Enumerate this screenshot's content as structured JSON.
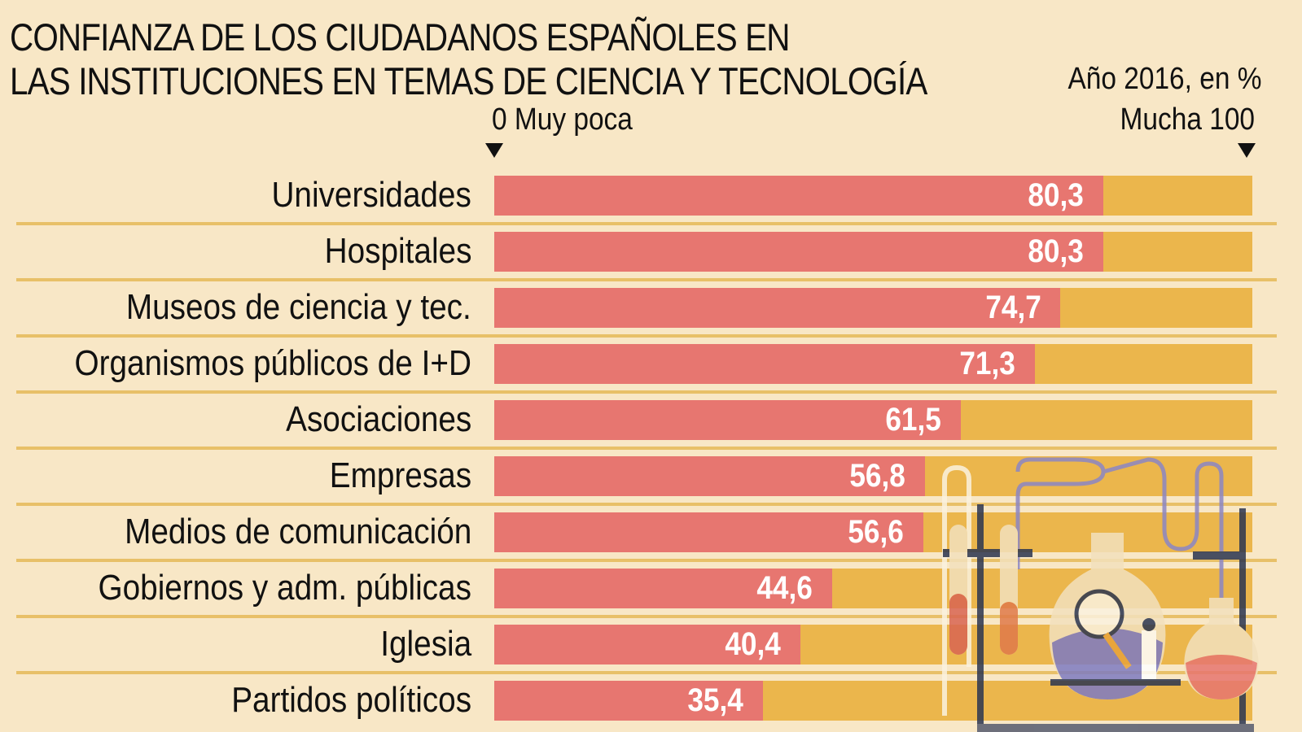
{
  "chart_data": {
    "type": "bar",
    "orientation": "horizontal",
    "title": "CONFIANZA DE LOS CIUDADANOS ESPAÑOLES EN LAS INSTITUCIONES EN TEMAS DE CIENCIA Y TECNOLOGÍA",
    "title_lines": [
      "CONFIANZA DE LOS CIUDADANOS ESPAÑOLES EN",
      "LAS INSTITUCIONES EN TEMAS DE CIENCIA Y TECNOLOGÍA"
    ],
    "subtitle": "Año 2016, en %",
    "axis_min_label": "0 Muy poca",
    "axis_max_label": "Mucha 100",
    "xlim": [
      0,
      100
    ],
    "grid": false,
    "legend": "none",
    "categories": [
      "Universidades",
      "Hospitales",
      "Museos de ciencia y tec.",
      "Organismos públicos de I+D",
      "Asociaciones",
      "Empresas",
      "Medios de comunicación",
      "Gobiernos y adm. públicas",
      "Iglesia",
      "Partidos políticos"
    ],
    "values": [
      80.3,
      80.3,
      74.7,
      71.3,
      61.5,
      56.8,
      56.6,
      44.6,
      40.4,
      35.4
    ],
    "value_labels": [
      "80,3",
      "80,3",
      "74,7",
      "71,3",
      "61,5",
      "56,8",
      "56,6",
      "44,6",
      "40,4",
      "35,4"
    ],
    "colors": {
      "background": "#f8e7c6",
      "bar_fill": "#e77670",
      "bar_track": "#ebb64c",
      "separator": "#e8c068",
      "value_text": "#ffffff"
    }
  },
  "illustration": "laboratory-scientist-illustration"
}
